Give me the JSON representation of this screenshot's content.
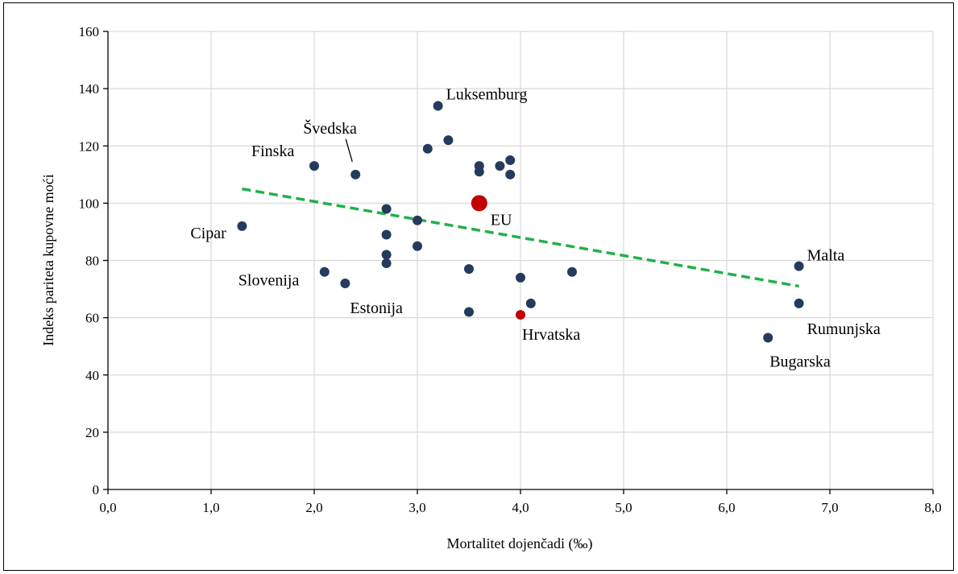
{
  "chart_data": {
    "type": "scatter",
    "title": "",
    "xlabel": "Mortalitet dojenčadi (‰)",
    "ylabel": "Indeks pariteta kupovne moći",
    "xlim": [
      0,
      8
    ],
    "ylim": [
      0,
      160
    ],
    "x_ticks": [
      "0,0",
      "1,0",
      "2,0",
      "3,0",
      "4,0",
      "5,0",
      "6,0",
      "7,0",
      "8,0"
    ],
    "y_ticks": [
      "0",
      "20",
      "40",
      "60",
      "80",
      "100",
      "120",
      "140",
      "160"
    ],
    "grid": true,
    "colors": {
      "point": "#243b5e",
      "highlight": "#c00000",
      "trend": "#22b04b"
    },
    "trendline": {
      "style": "dashed",
      "from": [
        1.3,
        105
      ],
      "to": [
        6.7,
        71
      ]
    },
    "points": [
      {
        "x": 1.3,
        "y": 92,
        "label": "Cipar",
        "kind": "normal"
      },
      {
        "x": 2.0,
        "y": 113,
        "label": "Finska",
        "kind": "normal"
      },
      {
        "x": 2.4,
        "y": 110,
        "label": "Švedska",
        "kind": "normal"
      },
      {
        "x": 2.1,
        "y": 76,
        "label": "Slovenija",
        "kind": "normal"
      },
      {
        "x": 2.3,
        "y": 72,
        "label": "Estonija",
        "kind": "normal"
      },
      {
        "x": 2.7,
        "y": 98,
        "label": "",
        "kind": "normal"
      },
      {
        "x": 2.7,
        "y": 89,
        "label": "",
        "kind": "normal"
      },
      {
        "x": 2.7,
        "y": 82,
        "label": "",
        "kind": "normal"
      },
      {
        "x": 2.7,
        "y": 79,
        "label": "",
        "kind": "normal"
      },
      {
        "x": 3.0,
        "y": 94,
        "label": "",
        "kind": "normal"
      },
      {
        "x": 3.0,
        "y": 85,
        "label": "",
        "kind": "normal"
      },
      {
        "x": 3.1,
        "y": 119,
        "label": "",
        "kind": "normal"
      },
      {
        "x": 3.2,
        "y": 134,
        "label": "Luksemburg",
        "kind": "normal"
      },
      {
        "x": 3.3,
        "y": 122,
        "label": "",
        "kind": "normal"
      },
      {
        "x": 3.5,
        "y": 77,
        "label": "",
        "kind": "normal"
      },
      {
        "x": 3.5,
        "y": 62,
        "label": "",
        "kind": "normal"
      },
      {
        "x": 3.6,
        "y": 113,
        "label": "",
        "kind": "normal"
      },
      {
        "x": 3.6,
        "y": 111,
        "label": "",
        "kind": "normal"
      },
      {
        "x": 3.6,
        "y": 100,
        "label": "EU",
        "kind": "eu"
      },
      {
        "x": 3.8,
        "y": 113,
        "label": "",
        "kind": "normal"
      },
      {
        "x": 3.9,
        "y": 115,
        "label": "",
        "kind": "normal"
      },
      {
        "x": 3.9,
        "y": 110,
        "label": "",
        "kind": "normal"
      },
      {
        "x": 4.0,
        "y": 74,
        "label": "",
        "kind": "normal"
      },
      {
        "x": 4.0,
        "y": 61,
        "label": "Hrvatska",
        "kind": "highlight"
      },
      {
        "x": 4.1,
        "y": 65,
        "label": "",
        "kind": "normal"
      },
      {
        "x": 4.5,
        "y": 76,
        "label": "",
        "kind": "normal"
      },
      {
        "x": 6.4,
        "y": 53,
        "label": "Bugarska",
        "kind": "normal"
      },
      {
        "x": 6.7,
        "y": 78,
        "label": "Malta",
        "kind": "normal"
      },
      {
        "x": 6.7,
        "y": 65,
        "label": "Rumunjska",
        "kind": "normal"
      }
    ]
  }
}
